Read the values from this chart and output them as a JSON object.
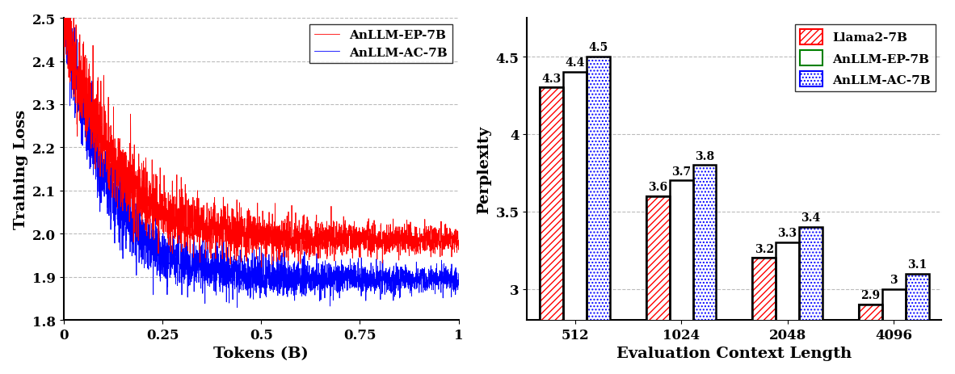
{
  "left_plot": {
    "xlabel": "Tokens (B)",
    "ylabel": "Training Loss",
    "xlim": [
      0,
      1
    ],
    "ylim": [
      1.8,
      2.5
    ],
    "yticks": [
      1.8,
      1.9,
      2.0,
      2.1,
      2.2,
      2.3,
      2.4,
      2.5
    ],
    "ytick_labels": [
      "1.8",
      "1.9",
      "2.0",
      "2.1",
      "2.2",
      "2.3",
      "2.4",
      "2.5"
    ],
    "xticks": [
      0,
      0.25,
      0.5,
      0.75,
      1
    ],
    "xtick_labels": [
      "0",
      "0.25",
      "0.5",
      "0.75",
      "1"
    ],
    "ep_color": "#FF0000",
    "ac_color": "#0000FF",
    "ep_label": "AnLLM-EP-7B",
    "ac_label": "AnLLM-AC-7B",
    "grid_color": "#AAAAAA",
    "grid_style": "--"
  },
  "right_plot": {
    "xlabel": "Evaluation Context Length",
    "ylabel": "Perplexity",
    "ylim": [
      2.8,
      4.75
    ],
    "yticks": [
      3.0,
      3.5,
      4.0,
      4.5
    ],
    "ytick_labels": [
      "3",
      "3.5",
      "4",
      "4.5"
    ],
    "categories": [
      "512",
      "1024",
      "2048",
      "4096"
    ],
    "llama_values": [
      4.3,
      3.6,
      3.2,
      2.9
    ],
    "ep_values": [
      4.4,
      3.7,
      3.3,
      3.0
    ],
    "ac_values": [
      4.5,
      3.8,
      3.4,
      3.1
    ],
    "llama_label": "Llama2-7B",
    "ep_label": "AnLLM-EP-7B",
    "ac_label": "AnLLM-AC-7B",
    "llama_edge_color": "#FF0000",
    "ep_edge_color": "#008000",
    "ac_edge_color": "#0000FF",
    "bar_width": 0.22,
    "grid_color": "#AAAAAA",
    "grid_style": "--"
  }
}
